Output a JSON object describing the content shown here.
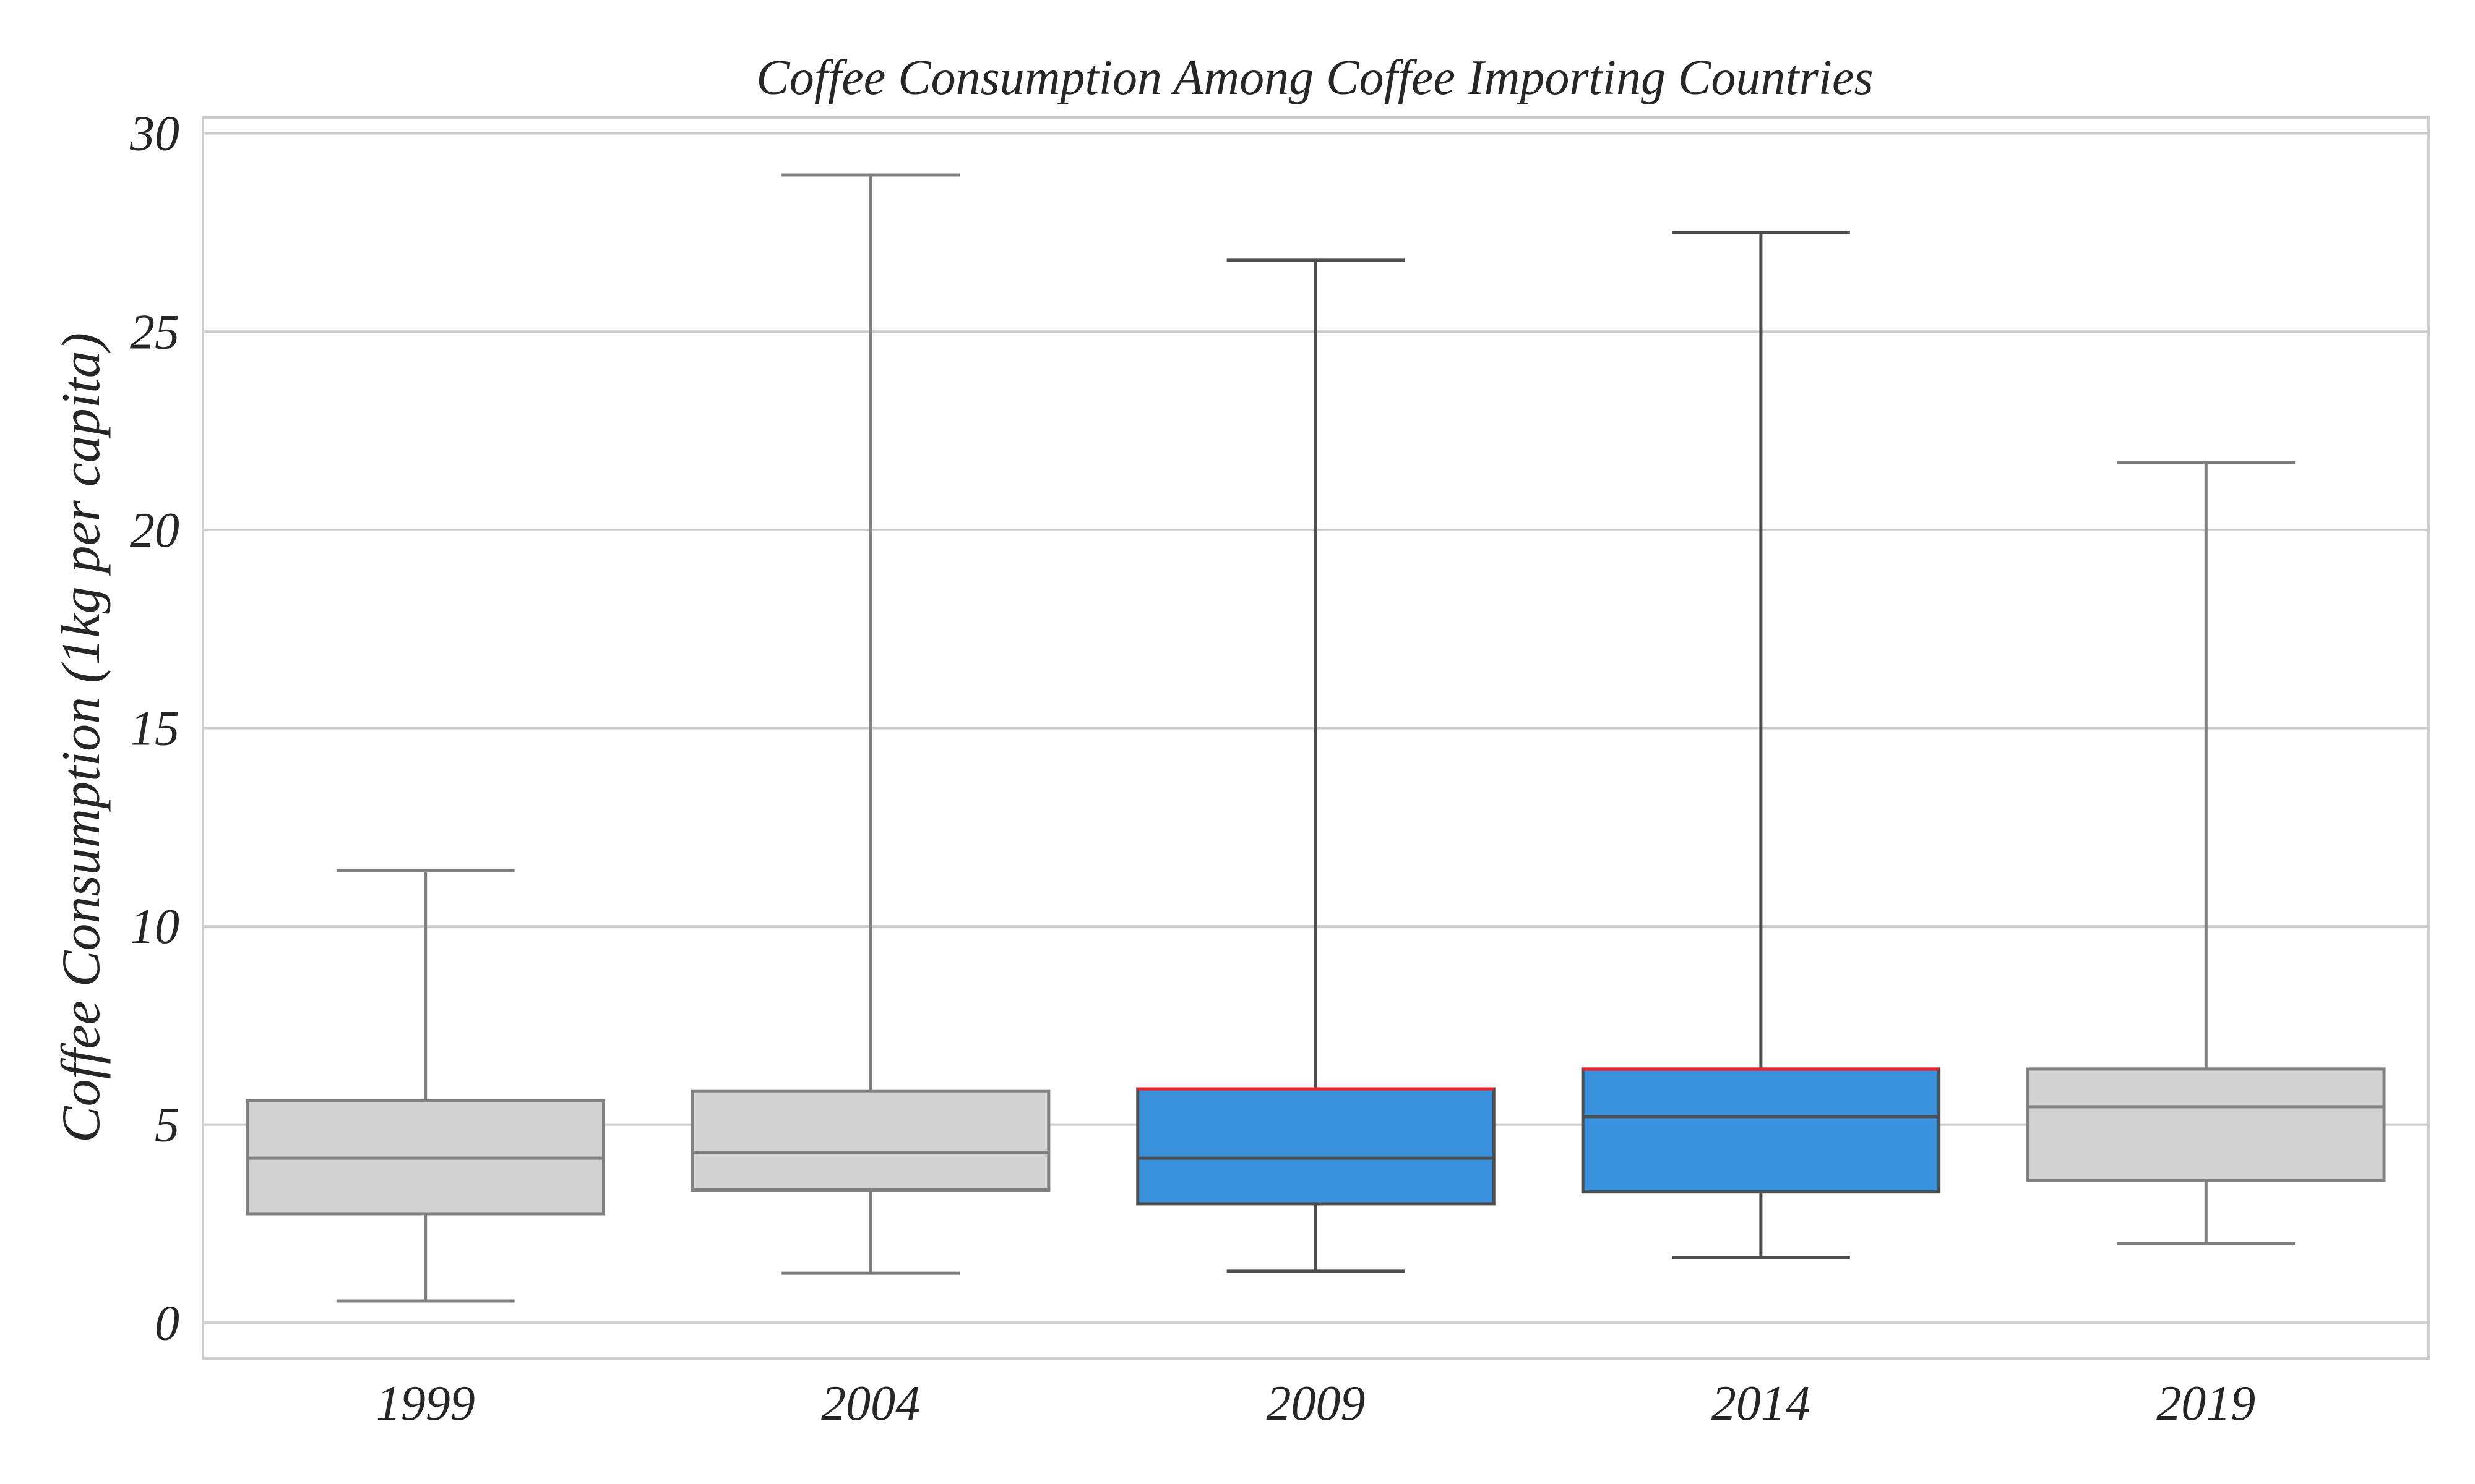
{
  "chart_data": {
    "type": "box",
    "title": "Coffee Consumption Among Coffee Importing Countries",
    "xlabel": "",
    "ylabel": "Coffee Consumption (1kg per capita)",
    "ylim": [
      -0.9,
      30.4
    ],
    "yticks": [
      0,
      5,
      10,
      15,
      20,
      25,
      30
    ],
    "grid": true,
    "categories": [
      "1999",
      "2004",
      "2009",
      "2014",
      "2019"
    ],
    "boxes": [
      {
        "category": "1999",
        "whisker_low": 0.55,
        "q1": 2.75,
        "median": 4.15,
        "q3": 5.6,
        "whisker_high": 11.4,
        "highlight": false
      },
      {
        "category": "2004",
        "whisker_low": 1.25,
        "q1": 3.35,
        "median": 4.3,
        "q3": 5.85,
        "whisker_high": 28.95,
        "highlight": false
      },
      {
        "category": "2009",
        "whisker_low": 1.3,
        "q1": 3.0,
        "median": 4.15,
        "q3": 5.9,
        "whisker_high": 26.8,
        "highlight": true
      },
      {
        "category": "2014",
        "whisker_low": 1.65,
        "q1": 3.3,
        "median": 5.2,
        "q3": 6.4,
        "whisker_high": 27.5,
        "highlight": true
      },
      {
        "category": "2019",
        "whisker_low": 2.0,
        "q1": 3.6,
        "median": 5.45,
        "q3": 6.4,
        "whisker_high": 21.7,
        "highlight": false
      }
    ],
    "colors": {
      "box_default": "#d3d3d3",
      "box_highlight": "#3a92dc",
      "line_default": "#7f7f7f",
      "line_highlight": "#4d4d4d",
      "q3_accent": "#e8232b"
    }
  }
}
